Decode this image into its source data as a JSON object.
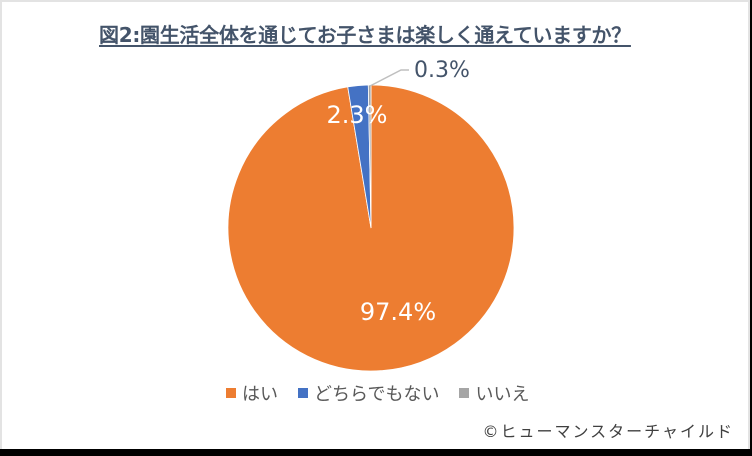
{
  "title": "図2:園生活全体を通じてお子さまは楽しく通えていますか？",
  "chart_data": {
    "type": "pie",
    "title": "図2:園生活全体を通じてお子さまは楽しく通えていますか？",
    "categories": [
      "はい",
      "どちらでもない",
      "いいえ"
    ],
    "values": [
      97.4,
      2.3,
      0.3
    ],
    "unit": "%",
    "colors": [
      "#ed7d31",
      "#4472c4",
      "#a5a5a5"
    ],
    "data_labels": [
      "97.4%",
      "2.3%",
      "0.3%"
    ],
    "start_angle_deg": 0,
    "direction": "clockwise",
    "legend_position": "bottom"
  },
  "legend": {
    "items": [
      {
        "label": "はい",
        "color": "#ed7d31"
      },
      {
        "label": "どちらでもない",
        "color": "#4472c4"
      },
      {
        "label": "いいえ",
        "color": "#a5a5a5"
      }
    ]
  },
  "labels": {
    "yes": "97.4%",
    "neutral": "2.3%",
    "no": "0.3%"
  },
  "credit": "©ヒューマンスターチャイルド"
}
